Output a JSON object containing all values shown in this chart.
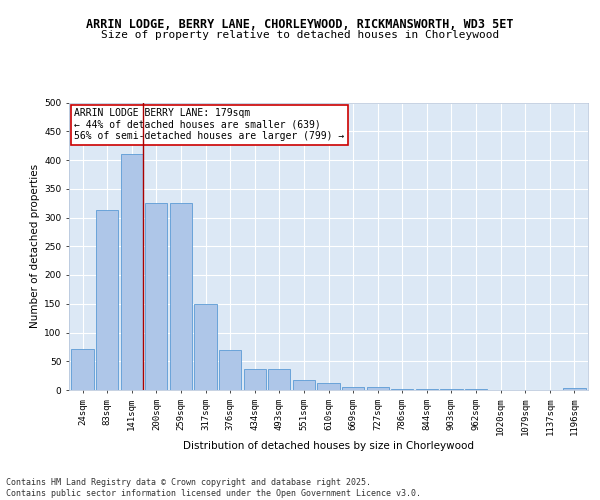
{
  "title_line1": "ARRIN LODGE, BERRY LANE, CHORLEYWOOD, RICKMANSWORTH, WD3 5ET",
  "title_line2": "Size of property relative to detached houses in Chorleywood",
  "xlabel": "Distribution of detached houses by size in Chorleywood",
  "ylabel": "Number of detached properties",
  "categories": [
    "24sqm",
    "83sqm",
    "141sqm",
    "200sqm",
    "259sqm",
    "317sqm",
    "376sqm",
    "434sqm",
    "493sqm",
    "551sqm",
    "610sqm",
    "669sqm",
    "727sqm",
    "786sqm",
    "844sqm",
    "903sqm",
    "962sqm",
    "1020sqm",
    "1079sqm",
    "1137sqm",
    "1196sqm"
  ],
  "values": [
    72,
    313,
    410,
    325,
    325,
    150,
    70,
    37,
    36,
    18,
    12,
    6,
    6,
    2,
    2,
    1,
    1,
    0,
    0,
    0,
    4
  ],
  "bar_color": "#aec6e8",
  "bar_edge_color": "#5b9bd5",
  "annotation_text": "ARRIN LODGE BERRY LANE: 179sqm\n← 44% of detached houses are smaller (639)\n56% of semi-detached houses are larger (799) →",
  "annotation_box_color": "#ffffff",
  "annotation_box_edge_color": "#cc0000",
  "ref_line_color": "#aa0000",
  "ylim": [
    0,
    500
  ],
  "yticks": [
    0,
    50,
    100,
    150,
    200,
    250,
    300,
    350,
    400,
    450,
    500
  ],
  "footer_text": "Contains HM Land Registry data © Crown copyright and database right 2025.\nContains public sector information licensed under the Open Government Licence v3.0.",
  "bg_color": "#dce8f5",
  "grid_color": "#ffffff",
  "title_fontsize": 8.5,
  "subtitle_fontsize": 8,
  "axis_label_fontsize": 7.5,
  "tick_fontsize": 6.5,
  "annotation_fontsize": 7,
  "footer_fontsize": 6
}
